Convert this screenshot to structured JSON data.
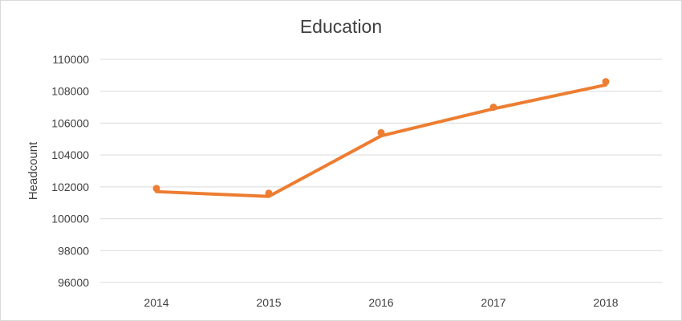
{
  "chart_data": {
    "type": "line",
    "title": "Education",
    "xlabel": "",
    "ylabel": "Headcount",
    "categories": [
      "2014",
      "2015",
      "2016",
      "2017",
      "2018"
    ],
    "series": [
      {
        "values": [
          101900,
          101600,
          105400,
          107000,
          108600
        ],
        "trend_values": [
          101700,
          101400,
          105200,
          106900,
          108400
        ],
        "color": "#ED7D31"
      }
    ],
    "ylim": [
      96000,
      110000
    ],
    "yticks": [
      "96000",
      "98000",
      "100000",
      "102000",
      "104000",
      "106000",
      "108000",
      "110000"
    ],
    "grid": true,
    "legend": "none",
    "colors": {
      "line": "#ED7D31",
      "grid": "#d9d9d9",
      "text": "#404040"
    }
  }
}
